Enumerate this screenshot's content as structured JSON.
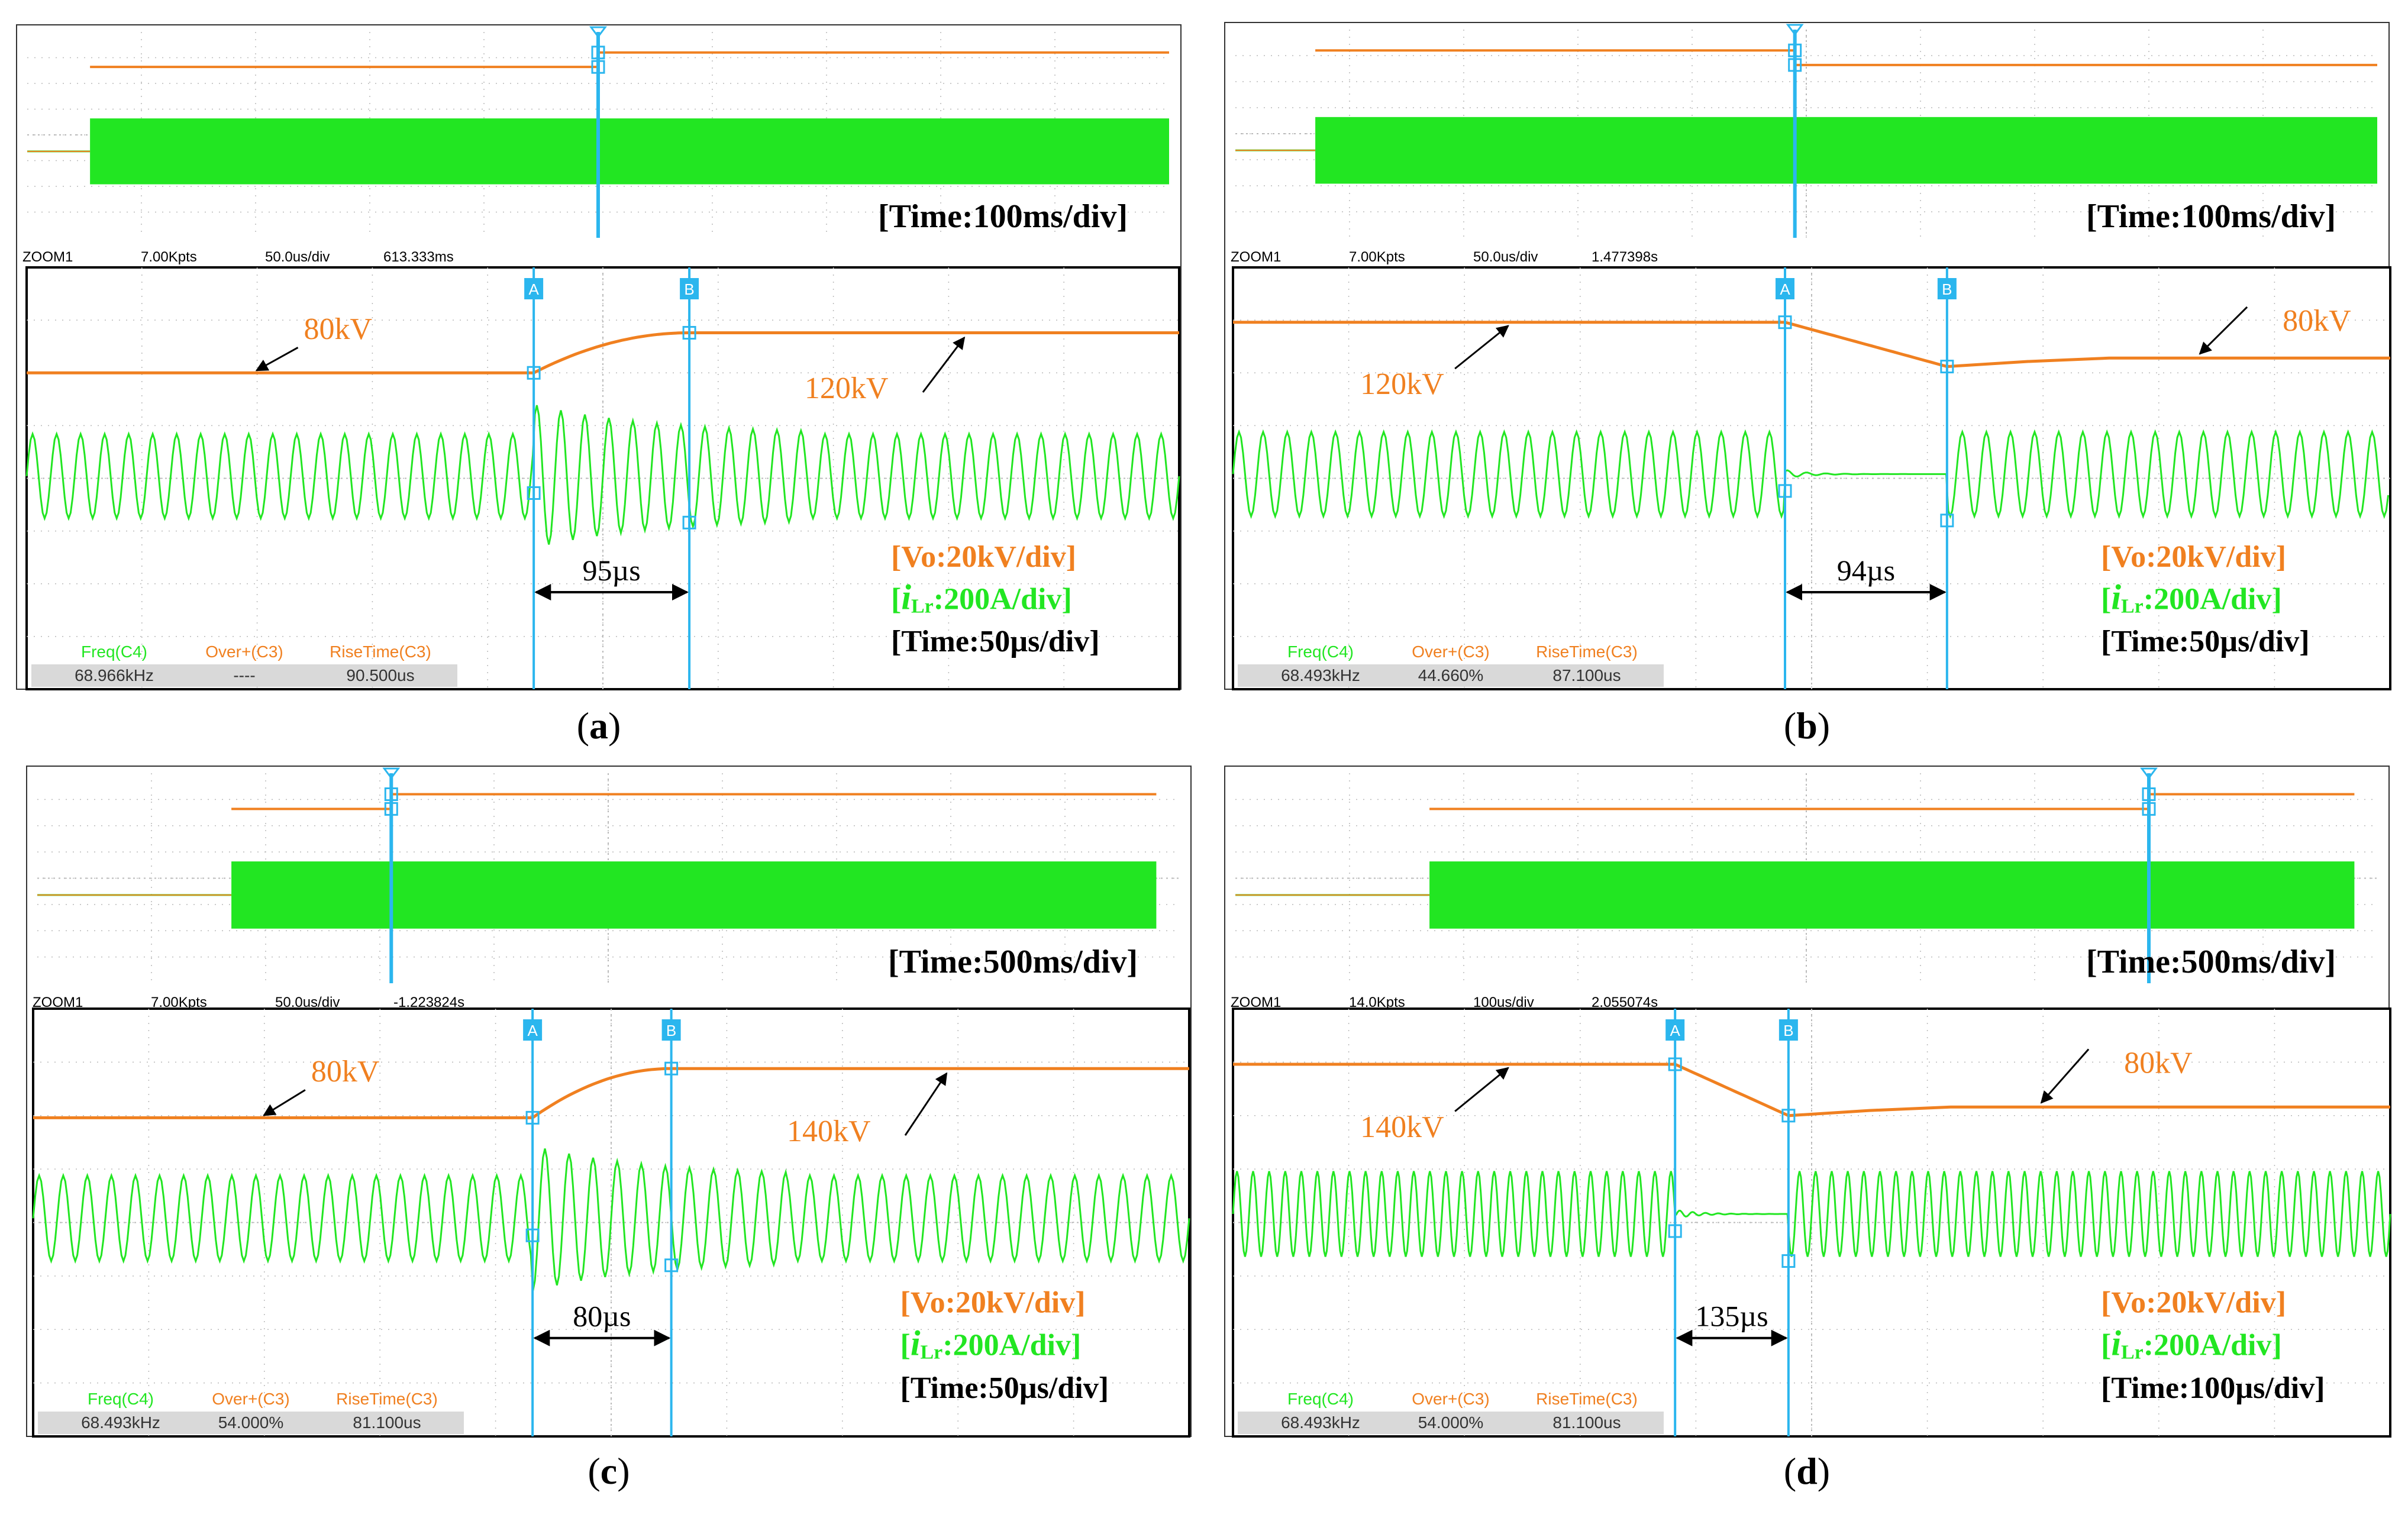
{
  "colors": {
    "voltage": "#f08020",
    "current": "#22e622",
    "cursor": "#2bb6ee",
    "grid": "#b9b9b9",
    "frame": "#333333",
    "meas_bg": "#d9d9d9"
  },
  "common": {
    "zoom_label": "ZOOM1",
    "meas_headers": [
      "Freq(C4)",
      "Over+(C3)",
      "RiseTime(C3)"
    ],
    "vo_scale": "[Vo:20kV/div]",
    "i_prefix": "[",
    "i_symbol": "i",
    "i_sub": "Lr",
    "i_scale": ":200A/div]",
    "cursor_a": "A",
    "cursor_b": "B",
    "micro": "µs"
  },
  "panels": [
    {
      "id": "a",
      "caption_open": "(",
      "caption_letter": "a",
      "caption_close": ")",
      "overview_time": "[Time:100ms/div]",
      "zoom_pts": "7.00Kpts",
      "zoom_div": "50.0us/div",
      "zoom_pos": "613.333ms",
      "zoom_time": "[Time:50µs/div]",
      "meas_values": [
        "68.966kHz",
        "----",
        "90.500us"
      ],
      "interval": "95µs",
      "label_start": "80kV",
      "label_end": "120kV"
    },
    {
      "id": "b",
      "caption_open": "(",
      "caption_letter": "b",
      "caption_close": ")",
      "overview_time": "[Time:100ms/div]",
      "zoom_pts": "7.00Kpts",
      "zoom_div": "50.0us/div",
      "zoom_pos": "1.477398s",
      "zoom_time": "[Time:50µs/div]",
      "meas_values": [
        "68.493kHz",
        "44.660%",
        "87.100us"
      ],
      "interval": "94µs",
      "label_start": "120kV",
      "label_end": "80kV"
    },
    {
      "id": "c",
      "caption_open": "(",
      "caption_letter": "c",
      "caption_close": ")",
      "overview_time": "[Time:500ms/div]",
      "zoom_pts": "7.00Kpts",
      "zoom_div": "50.0us/div",
      "zoom_pos": "-1.223824s",
      "zoom_time": "[Time:50µs/div]",
      "meas_values": [
        "68.493kHz",
        "54.000%",
        "81.100us"
      ],
      "interval": "80µs",
      "label_start": "80kV",
      "label_end": "140kV"
    },
    {
      "id": "d",
      "caption_open": "(",
      "caption_letter": "d",
      "caption_close": ")",
      "overview_time": "[Time:500ms/div]",
      "zoom_pts": "14.0Kpts",
      "zoom_div": "100us/div",
      "zoom_pos": "2.055074s",
      "zoom_time": "[Time:100µs/div]",
      "meas_values": [
        "68.493kHz",
        "54.000%",
        "81.100us"
      ],
      "interval": "135µs",
      "label_start": "140kV",
      "label_end": "80kV"
    }
  ],
  "chart_data": [
    {
      "type": "line",
      "panel": "a",
      "time_scale_overview": "100ms/div",
      "time_scale_zoom": "50µs/div",
      "series": [
        {
          "name": "Vo",
          "scale": "20kV/div",
          "start_kV": 80,
          "end_kV": 120
        },
        {
          "name": "iLr",
          "scale": "200A/div",
          "freq_kHz": 68.966
        }
      ],
      "cursor_interval_us": 95,
      "rise_time_us": 90.5
    },
    {
      "type": "line",
      "panel": "b",
      "time_scale_overview": "100ms/div",
      "time_scale_zoom": "50µs/div",
      "series": [
        {
          "name": "Vo",
          "scale": "20kV/div",
          "start_kV": 120,
          "end_kV": 80
        },
        {
          "name": "iLr",
          "scale": "200A/div",
          "freq_kHz": 68.493
        }
      ],
      "cursor_interval_us": 94,
      "overshoot_percent": 44.66,
      "rise_time_us": 87.1
    },
    {
      "type": "line",
      "panel": "c",
      "time_scale_overview": "500ms/div",
      "time_scale_zoom": "50µs/div",
      "series": [
        {
          "name": "Vo",
          "scale": "20kV/div",
          "start_kV": 80,
          "end_kV": 140
        },
        {
          "name": "iLr",
          "scale": "200A/div",
          "freq_kHz": 68.493
        }
      ],
      "cursor_interval_us": 80,
      "overshoot_percent": 54.0,
      "rise_time_us": 81.1
    },
    {
      "type": "line",
      "panel": "d",
      "time_scale_overview": "500ms/div",
      "time_scale_zoom": "100µs/div",
      "series": [
        {
          "name": "Vo",
          "scale": "20kV/div",
          "start_kV": 140,
          "end_kV": 80
        },
        {
          "name": "iLr",
          "scale": "200A/div",
          "freq_kHz": 68.493
        }
      ],
      "cursor_interval_us": 135,
      "overshoot_percent": 54.0,
      "rise_time_us": 81.1
    }
  ]
}
